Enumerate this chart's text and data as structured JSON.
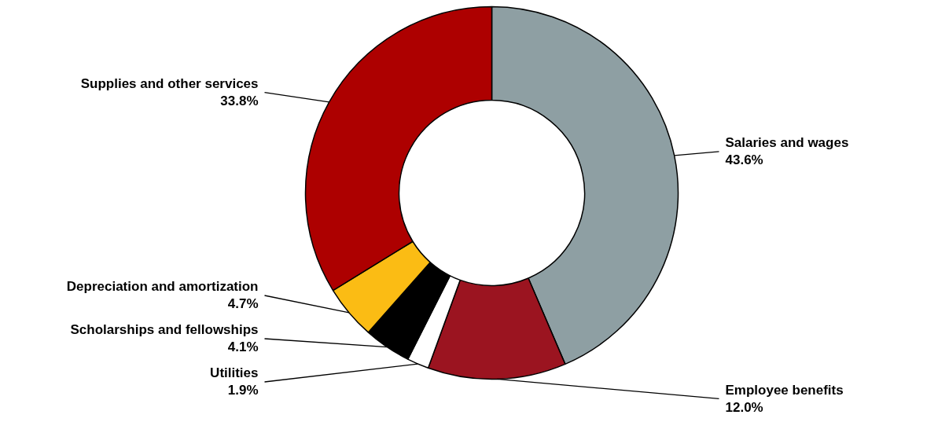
{
  "chart_data": {
    "type": "donut",
    "categories": [
      "Salaries and wages",
      "Employee benefits",
      "Utilities",
      "Scholarships and fellowships",
      "Depreciation and amortization",
      "Supplies and other services"
    ],
    "values": [
      43.6,
      12.0,
      1.9,
      4.1,
      4.7,
      33.8
    ],
    "value_labels": [
      "43.6%",
      "12.0%",
      "1.9%",
      "4.1%",
      "4.7%",
      "33.8%"
    ],
    "colors": [
      "#8e9fa3",
      "#9b1420",
      "#ffffff",
      "#000000",
      "#fbbc14",
      "#ad0000"
    ]
  }
}
